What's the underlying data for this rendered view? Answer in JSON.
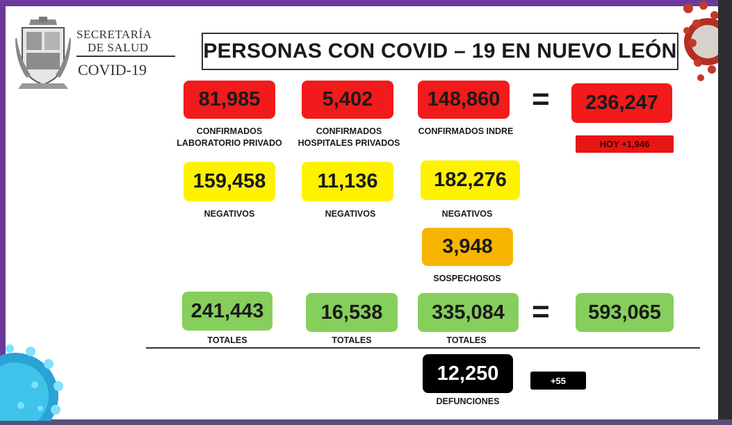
{
  "header": {
    "logo_line1": "SECRETARÍA",
    "logo_line2": "DE SALUD",
    "logo_line3": "COVID-19",
    "title": "PERSONAS CON COVID – 19 EN NUEVO LEÓN"
  },
  "columns": [
    {
      "confirmed": "81,985",
      "confirmed_label_1": "CONFIRMADOS",
      "confirmed_label_2": "LABORATORIO PRIVADO",
      "negatives": "159,458",
      "negatives_label": "NEGATIVOS",
      "totals": "241,443",
      "totals_label": "TOTALES"
    },
    {
      "confirmed": "5,402",
      "confirmed_label_1": "CONFIRMADOS",
      "confirmed_label_2": "HOSPITALES PRIVADOS",
      "negatives": "11,136",
      "negatives_label": "NEGATIVOS",
      "totals": "16,538",
      "totals_label": "TOTALES"
    },
    {
      "confirmed": "148,860",
      "confirmed_label_1": "CONFIRMADOS INDRE",
      "negatives": "182,276",
      "negatives_label": "NEGATIVOS",
      "suspects": "3,948",
      "suspects_label": "SOSPECHOSOS",
      "totals": "335,084",
      "totals_label": "TOTALES",
      "deaths": "12,250",
      "deaths_label": "DEFUNCIONES"
    }
  ],
  "summary": {
    "equals_sign": "=",
    "confirmed_total": "236,247",
    "today_increase": "HOY +1,946",
    "grand_total": "593,065",
    "deaths_increase": "+55"
  },
  "colors": {
    "confirmed": "#f21a1a",
    "negatives": "#fef200",
    "suspects": "#f7b500",
    "totals": "#86cf5c",
    "deaths": "#000000",
    "frame": "#6a3a9a"
  },
  "icons": [
    "state-seal-icon",
    "virus-icon"
  ]
}
